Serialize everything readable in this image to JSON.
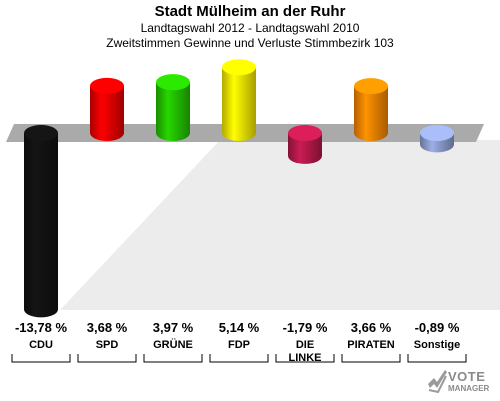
{
  "chart_data": {
    "type": "bar",
    "title": "Stadt Mülheim an der Ruhr",
    "subtitle1": "Landtagswahl 2012 - Landtagswahl 2010",
    "subtitle2": "Zweitstimmen Gewinne und Verluste Stimmbezirk 103",
    "ylim": [
      -13.78,
      5.14
    ],
    "bars": [
      {
        "party": "CDU",
        "value": -13.78,
        "label": "-13,78 %",
        "color": "#111111"
      },
      {
        "party": "SPD",
        "value": 3.68,
        "label": "3,68 %",
        "color": "#e00000"
      },
      {
        "party": "GRÜNE",
        "value": 3.97,
        "label": "3,97 %",
        "color": "#22bb00"
      },
      {
        "party": "FDP",
        "value": 5.14,
        "label": "5,14 %",
        "color": "#f0e000"
      },
      {
        "party": "DIE\nLINKE",
        "value": -1.79,
        "label": "-1,79 %",
        "color": "#b01848"
      },
      {
        "party": "PIRATEN",
        "value": 3.66,
        "label": "3,66 %",
        "color": "#f08000"
      },
      {
        "party": "Sonstige",
        "value": -0.89,
        "label": "-0,89 %",
        "color": "#8898c8"
      }
    ]
  },
  "logo": {
    "text": "VOTE",
    "sub": "MANAGER"
  }
}
